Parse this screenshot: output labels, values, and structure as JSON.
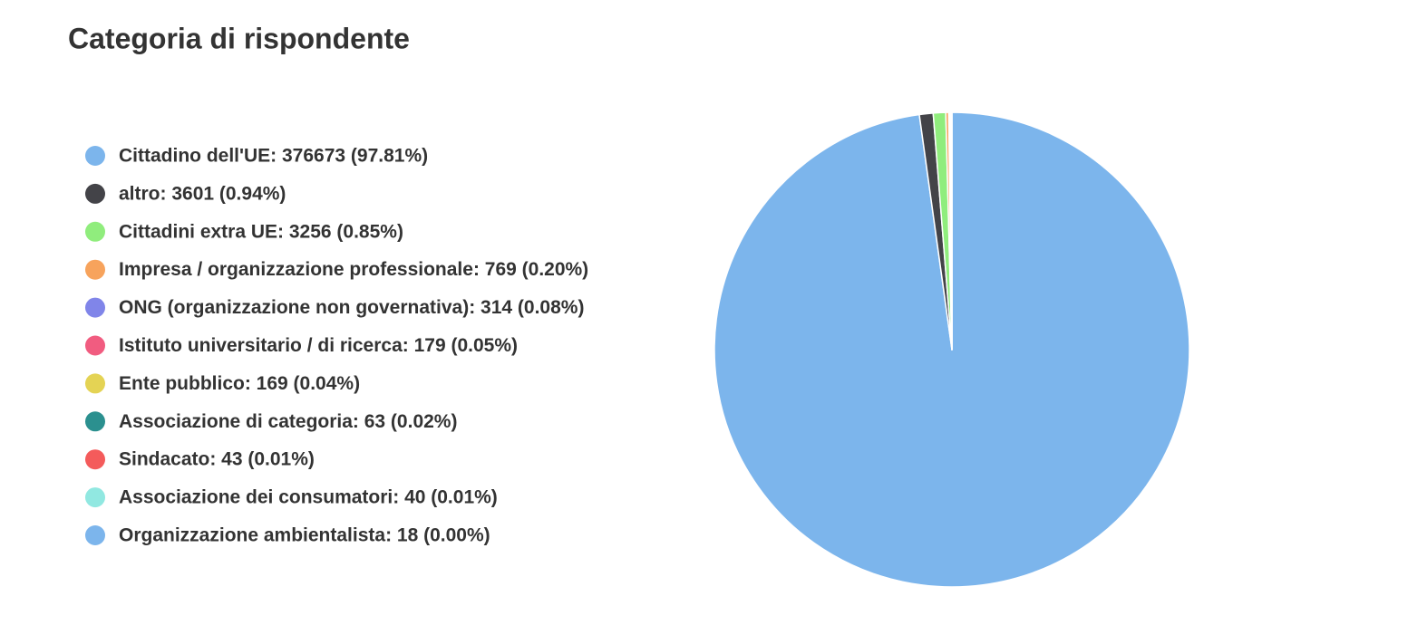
{
  "chart_data": {
    "type": "pie",
    "title": "Categoria di rispondente",
    "labels": [
      "Cittadino dell'UE: 376673 (97.81%)",
      "altro: 3601 (0.94%)",
      "Cittadini extra UE: 3256 (0.85%)",
      "Impresa / organizzazione professionale: 769 (0.20%)",
      "ONG (organizzazione non governativa): 314 (0.08%)",
      "Istituto universitario / di ricerca: 179 (0.05%)",
      "Ente pubblico: 169 (0.04%)",
      "Associazione di categoria: 63 (0.02%)",
      "Sindacato: 43 (0.01%)",
      "Associazione dei consumatori: 40 (0.01%)",
      "Organizzazione ambientalista: 18 (0.00%)"
    ],
    "values": [
      376673,
      3601,
      3256,
      769,
      314,
      179,
      169,
      63,
      43,
      40,
      18
    ],
    "colors": [
      "#7cb5ec",
      "#434348",
      "#90ed7d",
      "#f7a35c",
      "#8085e9",
      "#f15c80",
      "#e4d354",
      "#2b908f",
      "#f45b5b",
      "#91e8e1",
      "#7cb5ec"
    ],
    "legend": "left"
  }
}
